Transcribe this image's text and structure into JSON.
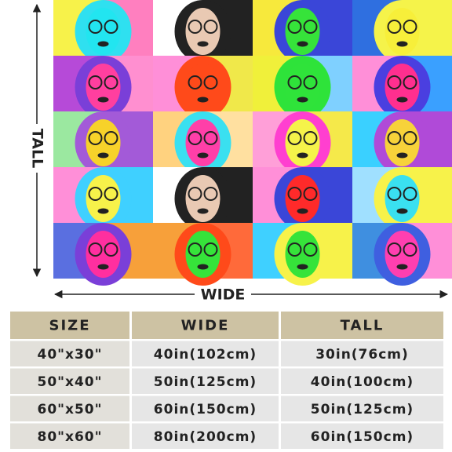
{
  "tall_label": "TALL",
  "wide_label": "WIDE",
  "table": {
    "header": [
      "SIZE",
      "WIDE",
      "TALL"
    ],
    "rows": [
      [
        "40\"x30\"",
        "40in(102cm)",
        "30in(76cm)"
      ],
      [
        "50\"x40\"",
        "50in(125cm)",
        "40in(100cm)"
      ],
      [
        "60\"x50\"",
        "60in(150cm)",
        "50in(125cm)"
      ],
      [
        "80\"x60\"",
        "80in(200cm)",
        "60in(150cm)"
      ]
    ]
  }
}
